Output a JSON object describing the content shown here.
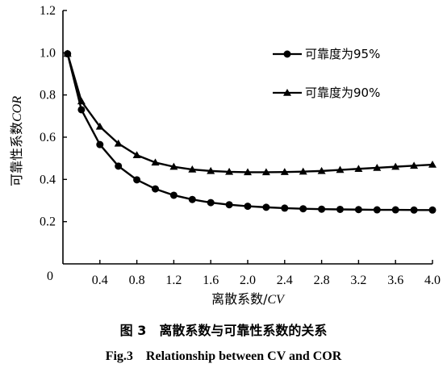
{
  "chart_data": {
    "type": "line",
    "title": "",
    "xlabel_main": "离散系数/",
    "xlabel_ital": "CV",
    "ylabel_main": "可靠性系数",
    "ylabel_ital": "COR",
    "xlim": [
      0,
      4.0
    ],
    "ylim": [
      0,
      1.2
    ],
    "x_ticks": [
      0.4,
      0.8,
      1.2,
      1.6,
      2.0,
      2.4,
      2.8,
      3.2,
      3.6,
      4.0
    ],
    "x_tick_labels": [
      "0.4",
      "0.8",
      "1.2",
      "1.6",
      "2.0",
      "2.4",
      "2.8",
      "3.2",
      "3.6",
      "4.0"
    ],
    "origin_label": "0",
    "y_ticks": [
      0.2,
      0.4,
      0.6,
      0.8,
      1.0,
      1.2
    ],
    "y_tick_labels": [
      "0.2",
      "0.4",
      "0.6",
      "0.8",
      "1.0",
      "1.2"
    ],
    "grid": false,
    "legend_position": "top-right",
    "series": [
      {
        "name": "可靠度为95%",
        "marker": "circle",
        "x": [
          0.05,
          0.2,
          0.4,
          0.6,
          0.8,
          1.0,
          1.2,
          1.4,
          1.6,
          1.8,
          2.0,
          2.2,
          2.4,
          2.6,
          2.8,
          3.0,
          3.2,
          3.4,
          3.6,
          3.8,
          4.0
        ],
        "y": [
          0.995,
          0.73,
          0.565,
          0.463,
          0.398,
          0.355,
          0.325,
          0.305,
          0.29,
          0.28,
          0.273,
          0.268,
          0.264,
          0.261,
          0.259,
          0.258,
          0.257,
          0.256,
          0.256,
          0.255,
          0.255
        ]
      },
      {
        "name": "可靠度为90%",
        "marker": "triangle",
        "x": [
          0.05,
          0.2,
          0.4,
          0.6,
          0.8,
          1.0,
          1.2,
          1.4,
          1.6,
          1.8,
          2.0,
          2.2,
          2.4,
          2.6,
          2.8,
          3.0,
          3.2,
          3.4,
          3.6,
          3.8,
          4.0
        ],
        "y": [
          0.995,
          0.77,
          0.65,
          0.57,
          0.515,
          0.48,
          0.46,
          0.447,
          0.44,
          0.436,
          0.434,
          0.434,
          0.435,
          0.437,
          0.44,
          0.445,
          0.45,
          0.455,
          0.46,
          0.465,
          0.47
        ]
      }
    ]
  },
  "caption": {
    "zh": "图 3　离散系数与可靠性系数的关系",
    "en": "Fig.3　Relationship between CV and COR"
  }
}
